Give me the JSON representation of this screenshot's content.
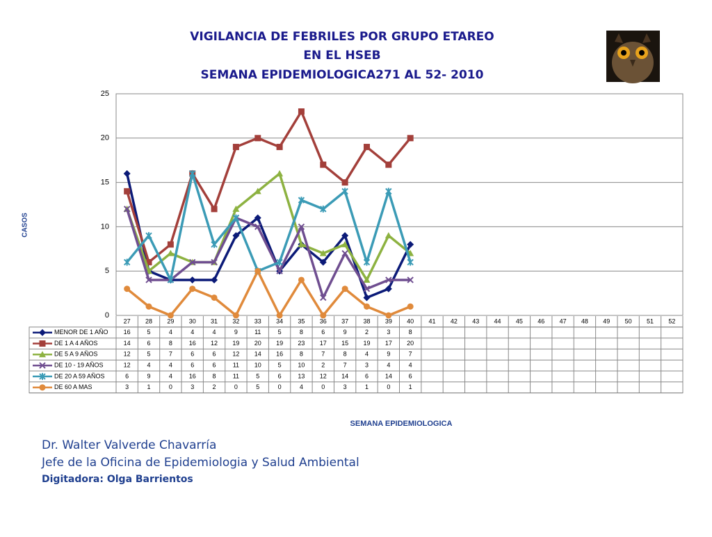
{
  "chart_data": {
    "type": "line",
    "title": [
      "VIGILANCIA DE FEBRILES  POR GRUPO ETAREO",
      "EN EL HSEB",
      "SEMANA EPIDEMIOLOGICA271 AL 52- 2010"
    ],
    "y_label": "CASOS",
    "x_label": "SEMANA EPIDEMIOLOGICA",
    "categories": [
      27,
      28,
      29,
      30,
      31,
      32,
      33,
      34,
      35,
      36,
      37,
      38,
      39,
      40,
      41,
      42,
      43,
      44,
      45,
      46,
      47,
      48,
      49,
      50,
      51,
      52
    ],
    "ylim": [
      0,
      25
    ],
    "yticks": [
      0,
      5,
      10,
      15,
      20,
      25
    ],
    "grid": true,
    "series": [
      {
        "name": "MENOR DE 1 AÑO",
        "color": "#0b1a78",
        "values": [
          16,
          5,
          4,
          4,
          4,
          9,
          11,
          5,
          8,
          6,
          9,
          2,
          3,
          8,
          null,
          null,
          null,
          null,
          null,
          null,
          null,
          null,
          null,
          null,
          null,
          null
        ]
      },
      {
        "name": "DE 1 A 4 AÑOS",
        "color": "#a33f3a",
        "values": [
          14,
          6,
          8,
          16,
          12,
          19,
          20,
          19,
          23,
          17,
          15,
          19,
          17,
          20,
          null,
          null,
          null,
          null,
          null,
          null,
          null,
          null,
          null,
          null,
          null,
          null
        ]
      },
      {
        "name": "DE 5 A 9 AÑOS",
        "color": "#8db241",
        "values": [
          12,
          5,
          7,
          6,
          6,
          12,
          14,
          16,
          8,
          7,
          8,
          4,
          9,
          7,
          null,
          null,
          null,
          null,
          null,
          null,
          null,
          null,
          null,
          null,
          null,
          null
        ]
      },
      {
        "name": "DE 10 - 19 AÑOS",
        "color": "#6f4e90",
        "values": [
          12,
          4,
          4,
          6,
          6,
          11,
          10,
          5,
          10,
          2,
          7,
          3,
          4,
          4,
          null,
          null,
          null,
          null,
          null,
          null,
          null,
          null,
          null,
          null,
          null,
          null
        ]
      },
      {
        "name": "DE 20 A 59 AÑOS",
        "color": "#3b9bb6",
        "values": [
          6,
          9,
          4,
          16,
          8,
          11,
          5,
          6,
          13,
          12,
          14,
          6,
          14,
          6,
          null,
          null,
          null,
          null,
          null,
          null,
          null,
          null,
          null,
          null,
          null,
          null
        ]
      },
      {
        "name": "DE 60 A  MAS",
        "color": "#e08a3b",
        "values": [
          3,
          1,
          0,
          3,
          2,
          0,
          5,
          0,
          4,
          0,
          3,
          1,
          0,
          1,
          null,
          null,
          null,
          null,
          null,
          null,
          null,
          null,
          null,
          null,
          null,
          null
        ]
      }
    ]
  },
  "footer": {
    "name": "Dr.  Walter Valverde Chavarría",
    "role": "Jefe de la Oficina de Epidemiologia y  Salud Ambiental",
    "typist": "Digitadora: Olga Barrientos"
  }
}
